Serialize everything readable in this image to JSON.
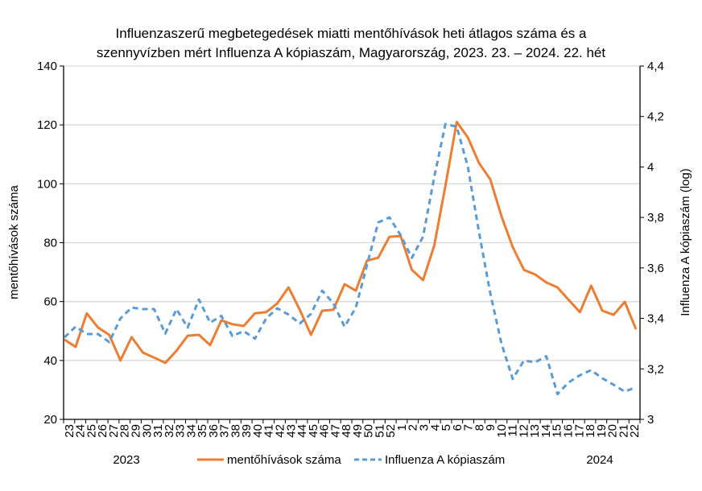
{
  "chart_data": {
    "type": "line",
    "title_line1": "Influenzaszerű megbetegedések miatti mentőhívások heti átlagos száma és a",
    "title_line2": "szennyvízben mért Influenza A kópiaszám, Magyarország, 2023. 23. – 2024. 22. hét",
    "categories": [
      "23",
      "24",
      "25",
      "26",
      "27",
      "28",
      "29",
      "30",
      "31",
      "32",
      "33",
      "34",
      "35",
      "36",
      "37",
      "38",
      "39",
      "40",
      "41",
      "42",
      "43",
      "44",
      "45",
      "46",
      "47",
      "48",
      "49",
      "50",
      "51",
      "52",
      "1",
      "2",
      "3",
      "4",
      "5",
      "6",
      "7",
      "8",
      "9",
      "10",
      "11",
      "12",
      "13",
      "14",
      "15",
      "16",
      "17",
      "18",
      "19",
      "20",
      "21",
      "22"
    ],
    "year_labels": [
      "2023",
      "2024"
    ],
    "ylabel_left": "mentőhívások száma",
    "ylabel_right": "Influenza A kópiaszám (log)",
    "ylim_left": [
      20,
      140
    ],
    "yticks_left": [
      "20",
      "40",
      "60",
      "80",
      "100",
      "120",
      "140"
    ],
    "ylim_right": [
      3,
      4.4
    ],
    "yticks_right": [
      "3",
      "3,2",
      "3,4",
      "3,6",
      "3,8",
      "4",
      "4,2",
      "4,4"
    ],
    "grid": true,
    "legend_position": "bottom",
    "series": [
      {
        "name": "mentőhívások száma",
        "axis": "left",
        "color": "#ED7D31",
        "style": "solid",
        "values": [
          47.1,
          44.6,
          56,
          51.2,
          48.7,
          40,
          47.9,
          42.7,
          41,
          39.2,
          43.3,
          48.4,
          48.7,
          45.2,
          53.6,
          52.3,
          51.7,
          56,
          56.4,
          59.4,
          64.8,
          57.2,
          48.7,
          56.9,
          57.2,
          65.9,
          63.7,
          73.9,
          74.9,
          82,
          82.3,
          70.8,
          67.3,
          79,
          99.3,
          121,
          115.7,
          107,
          101.5,
          89,
          78.5,
          70.8,
          69.2,
          66.5,
          64.8,
          60.5,
          56.4,
          65.4,
          56.9,
          55.5,
          59.9,
          50.6
        ]
      },
      {
        "name": "Influenza A kópiaszám",
        "axis": "right",
        "color": "#5B9BD5",
        "style": "dashed",
        "values": [
          3.325,
          3.367,
          3.338,
          3.338,
          3.306,
          3.4,
          3.443,
          3.437,
          3.437,
          3.34,
          3.437,
          3.364,
          3.475,
          3.383,
          3.41,
          3.33,
          3.35,
          3.32,
          3.4,
          3.44,
          3.415,
          3.38,
          3.418,
          3.51,
          3.46,
          3.367,
          3.443,
          3.612,
          3.78,
          3.8,
          3.73,
          3.64,
          3.724,
          3.96,
          4.17,
          4.16,
          4.0,
          3.74,
          3.5,
          3.3,
          3.16,
          3.233,
          3.226,
          3.25,
          3.1,
          3.147,
          3.175,
          3.195,
          3.163,
          3.137,
          3.11,
          3.128
        ]
      }
    ]
  }
}
